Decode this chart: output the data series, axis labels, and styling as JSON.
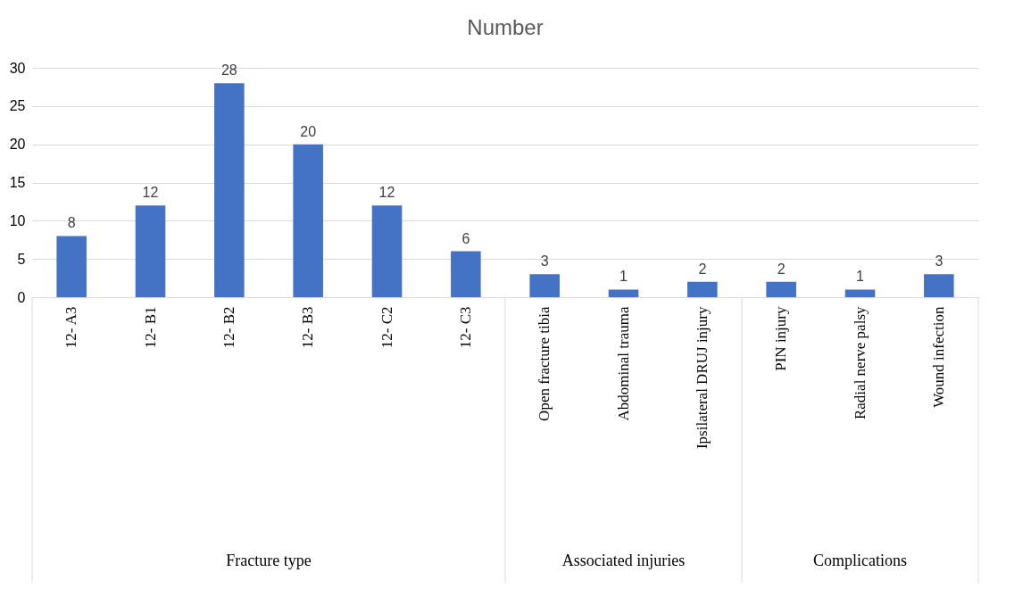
{
  "chart_data": {
    "type": "bar",
    "title": "Number",
    "categories": [
      "12- A3",
      "12- B1",
      "12- B2",
      "12- B3",
      "12- C2",
      "12- C3",
      "Open fracture tibia",
      "Abdominal trauma",
      "Ipsilateral DRUJ injury",
      "PIN injury",
      "Radial nerve palsy",
      "Wound infection"
    ],
    "values": [
      8,
      12,
      28,
      20,
      12,
      6,
      3,
      1,
      2,
      2,
      1,
      3
    ],
    "color": "#4472c4",
    "ylim": [
      0,
      30
    ],
    "yticks": [
      0,
      5,
      10,
      15,
      20,
      25,
      30
    ],
    "grid": "y",
    "data_labels": true,
    "annotations": [
      "Fracture type",
      "Associated injuries",
      "Complications"
    ]
  }
}
